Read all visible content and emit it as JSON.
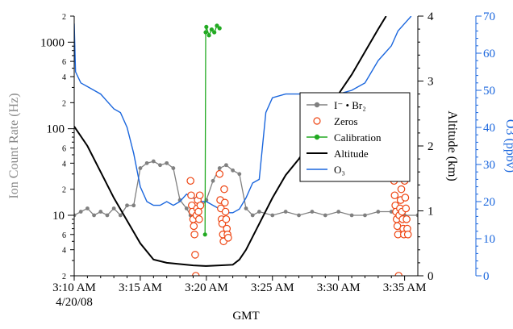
{
  "chart_data": {
    "type": "line",
    "xlabel": "GMT",
    "x_ticks": [
      "3:10 AM",
      "3:15 AM",
      "3:20 AM",
      "3:25 AM",
      "3:30 AM",
      "3:35 AM"
    ],
    "x_date_label": "4/20/08",
    "xlim_minutes": [
      0,
      26
    ],
    "y_left": {
      "label": "Ion Count Rate (Hz)",
      "scale": "log",
      "range": [
        2,
        2000
      ],
      "major_ticks": [
        "10",
        "100",
        "1000"
      ],
      "minor_ticks": [
        "2",
        "4",
        "6",
        "2",
        "4",
        "6",
        "2",
        "4",
        "6",
        "2"
      ]
    },
    "y_right1": {
      "label": "Altitude (km)",
      "range": [
        0,
        4
      ],
      "ticks": [
        "0",
        "1",
        "2",
        "3",
        "4"
      ]
    },
    "y_right2": {
      "label": "O3 (ppbv)",
      "range": [
        0,
        70
      ],
      "ticks": [
        "0",
        "10",
        "20",
        "30",
        "40",
        "50",
        "60",
        "70"
      ]
    },
    "legend": {
      "position": "right-middle",
      "entries": [
        "I⁻ • Br₂",
        "Zeros",
        "Calibration",
        "Altitude",
        "O₃"
      ]
    },
    "series": [
      {
        "name": "I⁻ • Br₂",
        "color": "#808080",
        "axis": "left",
        "points": [
          [
            0,
            10
          ],
          [
            0.5,
            11
          ],
          [
            1,
            12
          ],
          [
            1.5,
            10
          ],
          [
            2,
            11
          ],
          [
            2.5,
            10
          ],
          [
            3,
            12
          ],
          [
            3.5,
            10
          ],
          [
            4,
            13
          ],
          [
            4.5,
            13
          ],
          [
            5,
            35
          ],
          [
            5.5,
            40
          ],
          [
            6,
            42
          ],
          [
            6.5,
            38
          ],
          [
            7,
            40
          ],
          [
            7.5,
            35
          ],
          [
            8,
            15
          ],
          [
            8.5,
            12
          ],
          [
            8.8,
            10
          ],
          [
            9.5,
            12
          ],
          [
            10,
            15
          ],
          [
            10.5,
            25
          ],
          [
            11,
            35
          ],
          [
            11.5,
            38
          ],
          [
            12,
            33
          ],
          [
            12.5,
            30
          ],
          [
            13,
            12
          ],
          [
            13.5,
            10
          ],
          [
            14,
            11
          ],
          [
            15,
            10
          ],
          [
            16,
            11
          ],
          [
            17,
            10
          ],
          [
            18,
            11
          ],
          [
            19,
            10
          ],
          [
            20,
            11
          ],
          [
            21,
            10
          ],
          [
            22,
            10
          ],
          [
            23,
            11
          ],
          [
            24,
            11
          ],
          [
            24.5,
            10
          ],
          [
            25,
            10
          ],
          [
            26,
            10
          ]
        ]
      },
      {
        "name": "Zeros",
        "color": "#ee4411",
        "axis": "left",
        "points": [
          [
            8.8,
            25
          ],
          [
            8.85,
            17
          ],
          [
            8.9,
            13
          ],
          [
            8.95,
            11
          ],
          [
            9.0,
            9
          ],
          [
            9.05,
            7.5
          ],
          [
            9.1,
            6
          ],
          [
            9.15,
            3.5
          ],
          [
            9.2,
            2.0
          ],
          [
            9.25,
            10
          ],
          [
            9.3,
            12
          ],
          [
            9.35,
            15
          ],
          [
            9.4,
            11
          ],
          [
            9.45,
            9
          ],
          [
            9.5,
            17
          ],
          [
            9.55,
            13
          ],
          [
            11.0,
            30
          ],
          [
            11.05,
            15
          ],
          [
            11.1,
            12
          ],
          [
            11.15,
            9
          ],
          [
            11.2,
            8
          ],
          [
            11.25,
            6
          ],
          [
            11.3,
            5
          ],
          [
            11.35,
            20
          ],
          [
            11.4,
            14
          ],
          [
            11.45,
            11
          ],
          [
            11.5,
            9
          ],
          [
            11.55,
            7
          ],
          [
            11.6,
            6
          ],
          [
            11.65,
            5.5
          ],
          [
            24.2,
            25
          ],
          [
            24.25,
            17
          ],
          [
            24.3,
            13
          ],
          [
            24.35,
            11
          ],
          [
            24.4,
            9
          ],
          [
            24.45,
            7.5
          ],
          [
            24.5,
            6
          ],
          [
            24.55,
            2.0
          ],
          [
            24.6,
            10
          ],
          [
            24.65,
            12
          ],
          [
            24.7,
            15
          ],
          [
            24.75,
            20
          ],
          [
            24.8,
            11
          ],
          [
            24.85,
            9
          ],
          [
            24.9,
            7
          ],
          [
            24.95,
            6
          ],
          [
            25.0,
            25
          ],
          [
            25.05,
            16
          ],
          [
            25.1,
            12
          ],
          [
            25.15,
            9
          ],
          [
            25.2,
            7
          ],
          [
            25.25,
            6
          ]
        ]
      },
      {
        "name": "Calibration",
        "color": "#22aa22",
        "axis": "left",
        "points": [
          [
            9.9,
            6
          ],
          [
            9.95,
            1300
          ],
          [
            10.0,
            1500
          ],
          [
            10.2,
            1200
          ],
          [
            10.4,
            1400
          ],
          [
            10.6,
            1300
          ],
          [
            10.8,
            1550
          ],
          [
            11.0,
            1450
          ]
        ]
      },
      {
        "name": "Altitude",
        "color": "#000000",
        "axis": "right1",
        "points": [
          [
            0,
            2.3
          ],
          [
            1,
            2.0
          ],
          [
            2,
            1.6
          ],
          [
            3,
            1.2
          ],
          [
            4,
            0.85
          ],
          [
            5,
            0.5
          ],
          [
            6,
            0.25
          ],
          [
            7,
            0.2
          ],
          [
            8,
            0.18
          ],
          [
            9,
            0.16
          ],
          [
            10,
            0.15
          ],
          [
            11,
            0.16
          ],
          [
            12,
            0.17
          ],
          [
            12.5,
            0.25
          ],
          [
            13,
            0.4
          ],
          [
            14,
            0.8
          ],
          [
            15,
            1.2
          ],
          [
            16,
            1.55
          ],
          [
            17,
            1.8
          ],
          [
            18,
            2.1
          ],
          [
            19,
            2.45
          ],
          [
            20,
            2.8
          ],
          [
            21,
            3.1
          ],
          [
            22,
            3.45
          ],
          [
            23,
            3.8
          ],
          [
            23.6,
            4.0
          ]
        ]
      },
      {
        "name": "O₃",
        "color": "#1a66dd",
        "axis": "right2",
        "points": [
          [
            0,
            68
          ],
          [
            0.1,
            55
          ],
          [
            0.5,
            52
          ],
          [
            1,
            51
          ],
          [
            1.5,
            50
          ],
          [
            2,
            49
          ],
          [
            2.5,
            47
          ],
          [
            3,
            45
          ],
          [
            3.5,
            44
          ],
          [
            4,
            40
          ],
          [
            4.5,
            33
          ],
          [
            5,
            24
          ],
          [
            5.5,
            20
          ],
          [
            6,
            19
          ],
          [
            6.5,
            19
          ],
          [
            7,
            20
          ],
          [
            7.5,
            19
          ],
          [
            8,
            20
          ],
          [
            8.5,
            22
          ],
          [
            9,
            21
          ],
          [
            9.5,
            20
          ],
          [
            10,
            20
          ],
          [
            10.5,
            19
          ],
          [
            11,
            18
          ],
          [
            11.5,
            17
          ],
          [
            12,
            17
          ],
          [
            12.5,
            18
          ],
          [
            13,
            21
          ],
          [
            13.5,
            25
          ],
          [
            14,
            26
          ],
          [
            14.5,
            44
          ],
          [
            15,
            48
          ],
          [
            16,
            49
          ],
          [
            17,
            49
          ],
          [
            18,
            49
          ],
          [
            19,
            49
          ],
          [
            20,
            49
          ],
          [
            21,
            50
          ],
          [
            22,
            52
          ],
          [
            22.5,
            55
          ],
          [
            23,
            58
          ],
          [
            23.5,
            60
          ],
          [
            24,
            62
          ],
          [
            24.5,
            66
          ],
          [
            25,
            68
          ],
          [
            25.5,
            70
          ]
        ]
      }
    ]
  }
}
